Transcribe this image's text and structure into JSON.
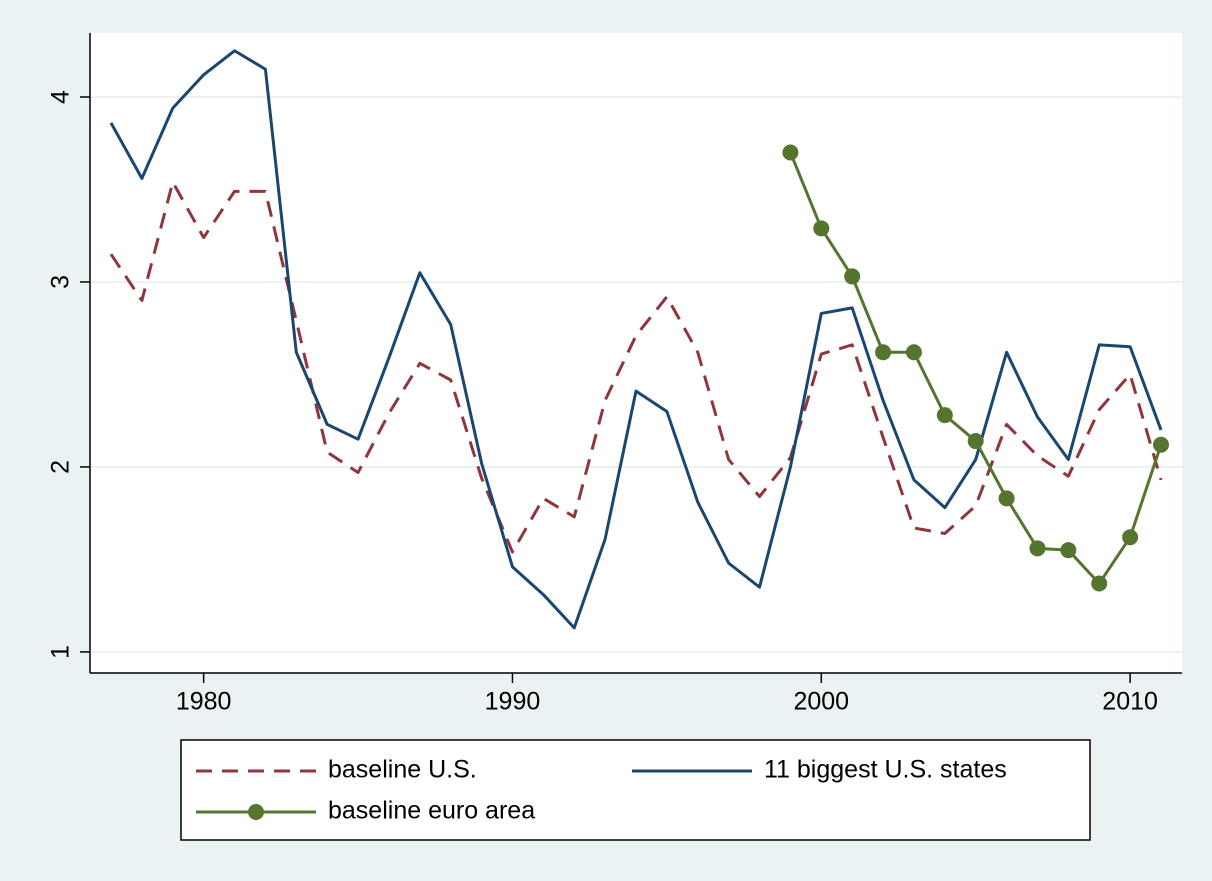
{
  "chart_data": {
    "type": "line",
    "x": [
      1977,
      1978,
      1979,
      1980,
      1981,
      1982,
      1983,
      1984,
      1985,
      1986,
      1987,
      1988,
      1989,
      1990,
      1991,
      1992,
      1993,
      1994,
      1995,
      1996,
      1997,
      1998,
      1999,
      2000,
      2001,
      2002,
      2003,
      2004,
      2005,
      2006,
      2007,
      2008,
      2009,
      2010,
      2011
    ],
    "series": [
      {
        "name": "baseline U.S.",
        "color": "#90353b",
        "dash": true,
        "values": [
          3.15,
          2.9,
          3.54,
          3.24,
          3.49,
          3.49,
          2.79,
          2.08,
          1.97,
          2.29,
          2.56,
          2.47,
          1.94,
          1.54,
          1.83,
          1.73,
          2.36,
          2.71,
          2.92,
          2.62,
          2.04,
          1.84,
          2.05,
          2.61,
          2.66,
          2.16,
          1.67,
          1.64,
          1.79,
          2.23,
          2.06,
          1.95,
          2.31,
          2.5,
          1.93
        ]
      },
      {
        "name": "11 biggest U.S. states",
        "color": "#1a476f",
        "values": [
          3.86,
          3.56,
          3.94,
          4.12,
          4.25,
          4.15,
          2.62,
          2.23,
          2.15,
          2.59,
          3.05,
          2.77,
          2.02,
          1.46,
          1.31,
          1.13,
          1.61,
          2.41,
          2.3,
          1.81,
          1.48,
          1.35,
          2.0,
          2.83,
          2.86,
          2.36,
          1.93,
          1.78,
          2.04,
          2.62,
          2.27,
          2.04,
          2.66,
          2.65,
          2.2
        ]
      },
      {
        "name": "baseline euro area",
        "color": "#55752f",
        "marker": "circle",
        "values": [
          null,
          null,
          null,
          null,
          null,
          null,
          null,
          null,
          null,
          null,
          null,
          null,
          null,
          null,
          null,
          null,
          null,
          null,
          null,
          null,
          null,
          null,
          3.7,
          3.29,
          3.03,
          2.62,
          2.62,
          2.28,
          2.14,
          1.83,
          1.56,
          1.55,
          1.37,
          1.62,
          2.12
        ]
      }
    ],
    "xlim": [
      1976.32,
      2011.68
    ],
    "xticks": [
      1980,
      1990,
      2000,
      2010
    ],
    "ylim": [
      0.886,
      4.346
    ],
    "yticks": [
      1,
      2,
      3,
      4
    ],
    "grid": true,
    "legend": "bottom"
  }
}
